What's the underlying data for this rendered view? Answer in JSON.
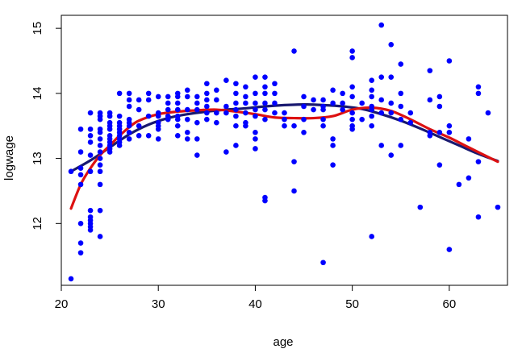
{
  "chart_data": {
    "type": "scatter",
    "title": "",
    "xlabel": "age",
    "ylabel": "logwage",
    "xlim": [
      20,
      66
    ],
    "ylim": [
      11.05,
      15.2
    ],
    "x_ticks": [
      20,
      30,
      40,
      50,
      60
    ],
    "y_ticks": [
      12,
      13,
      14,
      15
    ],
    "grid": false,
    "colors": {
      "points": "#0000ff",
      "fit_dark": "#191970",
      "fit_red": "#dd1111"
    },
    "series": [
      {
        "kind": "points",
        "x": [
          21,
          21,
          22,
          22,
          22,
          22,
          22,
          22,
          22,
          22,
          23,
          23,
          23,
          23,
          23,
          23,
          23,
          23,
          23,
          23,
          23,
          23,
          24,
          24,
          24,
          24,
          24,
          24,
          24,
          24,
          24,
          24,
          24,
          24,
          24,
          24,
          25,
          25,
          25,
          25,
          25,
          25,
          25,
          25,
          25,
          25,
          25,
          26,
          26,
          26,
          26,
          26,
          26,
          26,
          26,
          26,
          26,
          27,
          27,
          27,
          27,
          27,
          27,
          27,
          27,
          28,
          28,
          28,
          28,
          29,
          29,
          29,
          29,
          30,
          30,
          30,
          30,
          30,
          30,
          30,
          31,
          31,
          31,
          31,
          31,
          32,
          32,
          32,
          32,
          32,
          32,
          32,
          32,
          33,
          33,
          33,
          33,
          33,
          33,
          34,
          34,
          34,
          34,
          34,
          34,
          35,
          35,
          35,
          35,
          35,
          35,
          36,
          36,
          36,
          36,
          37,
          37,
          37,
          37,
          38,
          38,
          38,
          38,
          38,
          38,
          38,
          39,
          39,
          39,
          39,
          39,
          39,
          40,
          40,
          40,
          40,
          40,
          40,
          40,
          40,
          41,
          41,
          41,
          41,
          41,
          41,
          41,
          41,
          42,
          42,
          42,
          42,
          43,
          43,
          43,
          44,
          44,
          44,
          44,
          45,
          45,
          45,
          45,
          46,
          46,
          47,
          47,
          47,
          47,
          47,
          47,
          48,
          48,
          48,
          48,
          48,
          49,
          49,
          49,
          50,
          50,
          50,
          50,
          50,
          50,
          50,
          50,
          51,
          51,
          52,
          52,
          52,
          52,
          52,
          52,
          52,
          52,
          53,
          53,
          53,
          53,
          53,
          54,
          54,
          54,
          54,
          54,
          55,
          55,
          55,
          55,
          55,
          56,
          56,
          57,
          58,
          58,
          58,
          58,
          59,
          59,
          59,
          59,
          60,
          60,
          60,
          60,
          61,
          62,
          62,
          63,
          63,
          63,
          63,
          64,
          65
        ],
        "y": [
          11.15,
          12.8,
          13.45,
          13.1,
          12.85,
          12.75,
          12.6,
          12.0,
          11.7,
          11.55,
          13.7,
          13.45,
          13.35,
          13.25,
          13.05,
          12.8,
          12.2,
          12.1,
          12.05,
          12.0,
          11.95,
          11.9,
          13.7,
          13.65,
          13.6,
          13.45,
          13.4,
          13.3,
          13.2,
          13.1,
          13.0,
          12.9,
          12.8,
          12.6,
          12.2,
          11.8,
          13.7,
          13.65,
          13.55,
          13.5,
          13.45,
          13.35,
          13.3,
          13.25,
          13.2,
          13.15,
          13.1,
          14.0,
          13.65,
          13.55,
          13.5,
          13.45,
          13.4,
          13.35,
          13.3,
          13.25,
          13.2,
          14.0,
          13.9,
          13.8,
          13.6,
          13.55,
          13.5,
          13.4,
          13.3,
          13.9,
          13.75,
          13.5,
          13.35,
          14.0,
          13.9,
          13.65,
          13.35,
          13.95,
          13.7,
          13.65,
          13.55,
          13.5,
          13.45,
          13.3,
          13.95,
          13.85,
          13.75,
          13.65,
          13.6,
          14.0,
          13.95,
          13.85,
          13.75,
          13.65,
          13.6,
          13.5,
          13.35,
          14.05,
          13.95,
          13.75,
          13.6,
          13.4,
          13.3,
          13.95,
          13.85,
          13.75,
          13.55,
          13.3,
          13.05,
          14.15,
          14.0,
          13.9,
          13.8,
          13.7,
          13.6,
          14.05,
          13.9,
          13.7,
          13.55,
          14.2,
          13.8,
          13.7,
          13.1,
          14.15,
          14.0,
          13.85,
          13.75,
          13.65,
          13.5,
          13.2,
          14.1,
          13.95,
          13.85,
          13.7,
          13.55,
          13.5,
          14.25,
          14.0,
          13.85,
          13.75,
          13.65,
          13.4,
          13.3,
          13.15,
          14.25,
          14.1,
          14.0,
          13.85,
          13.75,
          13.6,
          12.4,
          12.35,
          14.15,
          14.0,
          13.85,
          13.7,
          13.7,
          13.6,
          13.5,
          14.65,
          13.5,
          12.95,
          12.5,
          13.95,
          13.8,
          13.6,
          13.4,
          13.9,
          13.75,
          13.9,
          13.8,
          13.75,
          13.6,
          13.5,
          11.4,
          14.05,
          13.85,
          13.3,
          13.2,
          12.9,
          14.0,
          13.85,
          13.75,
          14.65,
          14.55,
          14.1,
          13.95,
          13.7,
          13.6,
          13.5,
          13.45,
          13.85,
          13.6,
          14.2,
          14.05,
          13.95,
          13.8,
          13.75,
          13.65,
          13.5,
          11.8,
          15.05,
          14.25,
          13.9,
          13.7,
          13.2,
          14.75,
          14.25,
          13.85,
          13.7,
          13.05,
          14.45,
          14.0,
          13.8,
          13.6,
          13.2,
          13.7,
          13.55,
          12.25,
          14.35,
          13.9,
          13.4,
          13.35,
          13.95,
          13.8,
          13.4,
          12.9,
          14.5,
          13.5,
          13.4,
          11.6,
          12.6,
          13.3,
          12.7,
          14.1,
          14.0,
          12.95,
          12.1,
          13.7,
          12.25
        ]
      },
      {
        "kind": "line",
        "x": [
          21,
          23,
          25,
          27,
          29,
          31,
          33,
          35,
          37,
          39,
          41,
          43,
          45,
          47,
          49,
          51,
          53,
          55,
          57,
          59,
          61,
          63,
          65
        ],
        "y": [
          12.8,
          12.97,
          13.17,
          13.37,
          13.52,
          13.62,
          13.68,
          13.72,
          13.75,
          13.77,
          13.8,
          13.82,
          13.83,
          13.82,
          13.8,
          13.76,
          13.68,
          13.58,
          13.46,
          13.33,
          13.2,
          13.07,
          12.96
        ]
      },
      {
        "kind": "line",
        "x": [
          21,
          22,
          23,
          24,
          25,
          26,
          27,
          28,
          30,
          32,
          34,
          36,
          38,
          40,
          42,
          44,
          46,
          48,
          50,
          52,
          54,
          56,
          58,
          60,
          62,
          65
        ],
        "y": [
          12.23,
          12.6,
          12.85,
          13.05,
          13.2,
          13.35,
          13.48,
          13.58,
          13.68,
          13.72,
          13.74,
          13.75,
          13.72,
          13.68,
          13.63,
          13.62,
          13.62,
          13.65,
          13.75,
          13.78,
          13.73,
          13.6,
          13.45,
          13.32,
          13.17,
          12.95
        ]
      }
    ]
  }
}
